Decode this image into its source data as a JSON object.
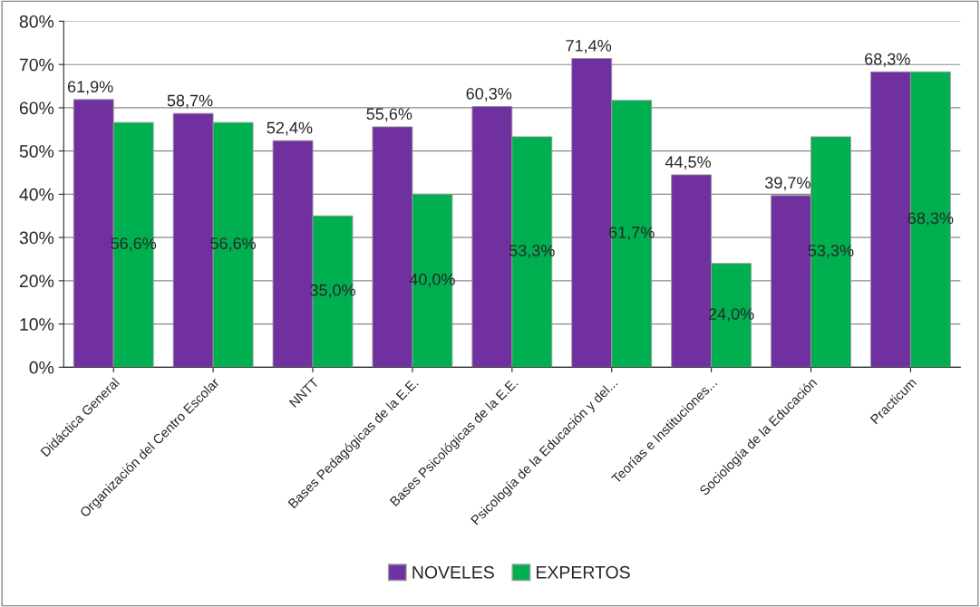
{
  "chart_data": {
    "type": "bar",
    "categories": [
      "Didáctica General",
      "Organización del Centro Escolar",
      "NNTT",
      "Bases Pedagógicas de la E.E.",
      "Bases Psicológicas de la E.E.",
      "Psicología de la Educación y del...",
      "Teorías e Instituciones...",
      "Sociología de la Educación",
      "Practicum"
    ],
    "series": [
      {
        "name": "NOVELES",
        "color": "#7030a0",
        "values": [
          61.9,
          58.7,
          52.4,
          55.6,
          60.3,
          71.4,
          44.5,
          39.7,
          68.3
        ],
        "value_labels": [
          "61,9%",
          "58,7%",
          "52,4%",
          "55,6%",
          "60,3%",
          "71,4%",
          "44,5%",
          "39,7%",
          "68,3%"
        ]
      },
      {
        "name": "EXPERTOS",
        "color": "#00b050",
        "values": [
          56.6,
          56.6,
          35.0,
          40.0,
          53.3,
          61.7,
          24.0,
          53.3,
          68.3
        ],
        "value_labels": [
          "56,6%",
          "56,6%",
          "35,0%",
          "40,0%",
          "53,3%",
          "61,7%",
          "24,0%",
          "53,3%",
          "68,3%"
        ]
      }
    ],
    "ylim": [
      0,
      80
    ],
    "yticks": [
      {
        "value": 0,
        "label": "0%"
      },
      {
        "value": 10,
        "label": "10%"
      },
      {
        "value": 20,
        "label": "20%"
      },
      {
        "value": 30,
        "label": "30%"
      },
      {
        "value": 40,
        "label": "40%"
      },
      {
        "value": 50,
        "label": "50%"
      },
      {
        "value": 60,
        "label": "60%"
      },
      {
        "value": 70,
        "label": "70%"
      },
      {
        "value": 80,
        "label": "80%"
      }
    ],
    "grid": "y",
    "legend": "bottom"
  }
}
